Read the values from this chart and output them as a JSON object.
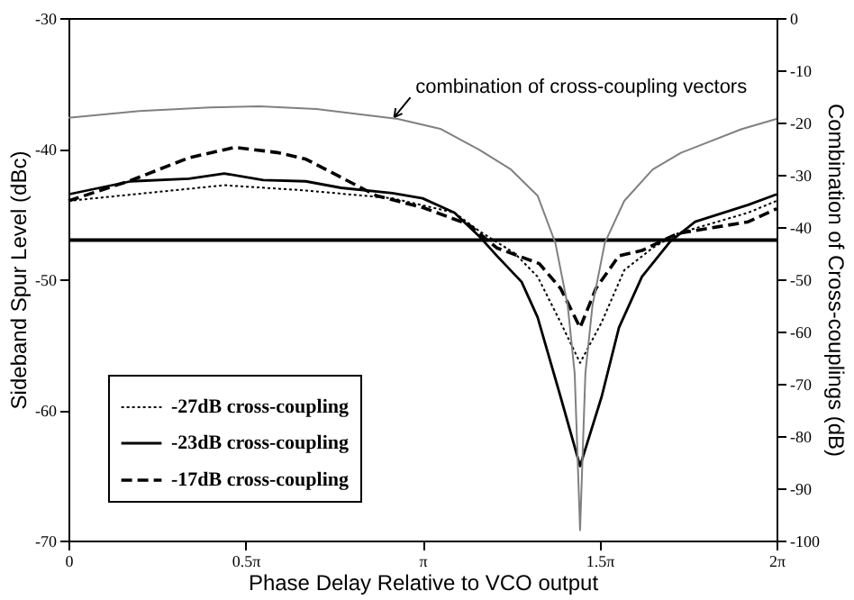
{
  "chart_data": {
    "type": "line",
    "xlabel": "Phase Delay Relative to VCO output",
    "ylabel": "Sideband Spur Level (dBc)",
    "y2label": "Combination of Cross-couplings (dB)",
    "xlim": [
      0,
      6.2832
    ],
    "xticks": [
      0,
      {
        "value": 1.5708,
        "label": "0.5π"
      },
      {
        "value": 3.1416,
        "label": "π"
      },
      {
        "value": 4.7124,
        "label": "1.5π"
      },
      {
        "value": 6.2832,
        "label": "2π"
      }
    ],
    "ylim": [
      -70,
      -30
    ],
    "yticks": [
      -70,
      -60,
      -50,
      -40,
      -30
    ],
    "y2lim": [
      -100,
      0
    ],
    "y2ticks": [
      -100,
      -90,
      -80,
      -70,
      -60,
      -50,
      -40,
      -30,
      -20,
      -10,
      0
    ],
    "legend": "bottom left",
    "series": [
      {
        "name": "-27dB cross-coupling",
        "color": "#000000",
        "line_style": "dotted",
        "x": [
          0,
          1.382,
          2.105,
          2.875,
          3.424,
          3.644,
          3.958,
          4.163,
          4.367,
          4.54,
          4.731,
          4.932,
          5.184,
          5.404,
          6.032,
          6.283
        ],
        "values": [
          -44.0,
          -42.8,
          -43.2,
          -43.8,
          -44.9,
          -46.3,
          -48.0,
          -49.8,
          -53.3,
          -56.4,
          -53.3,
          -49.3,
          -47.6,
          -46.5,
          -44.9,
          -44.0
        ]
      },
      {
        "name": "-23dB cross-coupling",
        "color": "#000000",
        "line_style": "solid",
        "x": [
          0,
          0.553,
          1.068,
          1.382,
          1.728,
          2.105,
          2.419,
          2.875,
          3.142,
          3.424,
          3.644,
          3.801,
          4.021,
          4.163,
          4.367,
          4.54,
          4.731,
          4.885,
          5.089,
          5.341,
          5.561,
          6.032,
          6.283
        ],
        "values": [
          -43.5,
          -42.5,
          -42.3,
          -41.9,
          -42.4,
          -42.5,
          -43.0,
          -43.4,
          -43.8,
          -44.9,
          -46.7,
          -48.2,
          -50.2,
          -52.9,
          -59.0,
          -64.3,
          -59.0,
          -53.7,
          -49.8,
          -47.1,
          -45.6,
          -44.3,
          -43.5
        ]
      },
      {
        "name": "-17dB cross-coupling",
        "color": "#000000",
        "line_style": "dashed",
        "x": [
          0,
          0.565,
          1.068,
          1.477,
          1.854,
          2.105,
          2.419,
          2.733,
          3.142,
          3.55,
          3.801,
          4.178,
          4.367,
          4.54,
          4.681,
          4.885,
          5.089,
          5.404,
          6.032,
          6.283
        ],
        "values": [
          -44.0,
          -42.4,
          -40.7,
          -39.9,
          -40.3,
          -40.8,
          -42.2,
          -43.6,
          -44.5,
          -45.8,
          -47.6,
          -48.8,
          -50.7,
          -53.7,
          -50.7,
          -48.2,
          -47.8,
          -46.5,
          -45.6,
          -44.6
        ]
      },
      {
        "color": "#808080",
        "line_style": "solid",
        "axis": "y2",
        "x": [
          0,
          0.628,
          1.257,
          1.696,
          2.199,
          2.922,
          3.299,
          3.644,
          3.927,
          4.163,
          4.32,
          4.43,
          4.492,
          4.54,
          4.587,
          4.65,
          4.76,
          4.932,
          5.184,
          5.435,
          5.969,
          6.283
        ],
        "values": [
          -19.1,
          -17.8,
          -17.1,
          -16.9,
          -17.4,
          -19.3,
          -21.2,
          -25.2,
          -29,
          -34,
          -43,
          -55,
          -68,
          -98,
          -68,
          -55,
          -43,
          -35,
          -29,
          -25.8,
          -21.3,
          -19.3
        ]
      }
    ],
    "ref_lines": [
      {
        "axis": "y",
        "value": -47,
        "color": "#000000",
        "line_style": "solid"
      }
    ],
    "annotations": [
      "combination of cross-coupling vectors"
    ]
  }
}
